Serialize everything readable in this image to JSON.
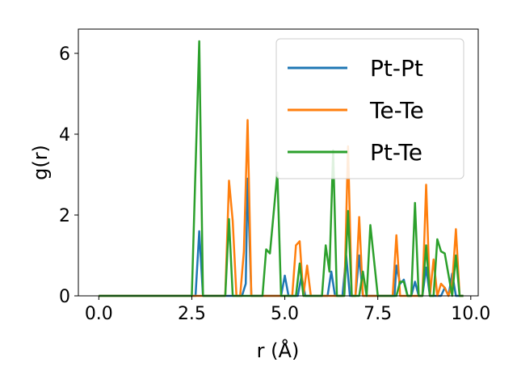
{
  "chart_data": {
    "type": "line",
    "xlabel": "r (Å)",
    "ylabel": "g(r)",
    "xlim": [
      -0.55,
      10.2
    ],
    "ylim": [
      0,
      6.6
    ],
    "xticks": [
      {
        "value": 0.0,
        "label": "0.0"
      },
      {
        "value": 2.5,
        "label": "2.5"
      },
      {
        "value": 5.0,
        "label": "5.0"
      },
      {
        "value": 7.5,
        "label": "7.5"
      },
      {
        "value": 10.0,
        "label": "10.0"
      }
    ],
    "yticks": [
      {
        "value": 0,
        "label": "0"
      },
      {
        "value": 2,
        "label": "2"
      },
      {
        "value": 4,
        "label": "4"
      },
      {
        "value": 6,
        "label": "6"
      }
    ],
    "grid": false,
    "legend": "top-right",
    "series": [
      {
        "name": "Pt-Pt",
        "color": "#1f77b4",
        "x": [
          0.0,
          2.6,
          2.7,
          2.8,
          3.85,
          3.95,
          4.0,
          4.1,
          4.9,
          5.0,
          5.1,
          5.35,
          5.45,
          5.55,
          6.15,
          6.25,
          6.35,
          6.55,
          6.65,
          6.75,
          6.9,
          7.0,
          7.1,
          7.95,
          8.0,
          8.1,
          8.2,
          8.3,
          8.4,
          8.5,
          8.6,
          8.7,
          8.8,
          8.9,
          9.0,
          9.2,
          9.3,
          9.4,
          9.5,
          9.6,
          9.7,
          9.8
        ],
        "y": [
          0.0,
          0.0,
          1.6,
          0.0,
          0.0,
          0.3,
          2.9,
          0.0,
          0.0,
          0.5,
          0.0,
          0.0,
          0.5,
          0.0,
          0.0,
          0.6,
          0.0,
          0.0,
          1.0,
          0.0,
          0.0,
          1.0,
          0.0,
          0.0,
          0.75,
          0.3,
          0.4,
          0.0,
          0.0,
          0.35,
          0.0,
          0.0,
          0.7,
          0.0,
          0.0,
          0.0,
          0.2,
          0.0,
          0.55,
          0.0,
          0.0,
          0.0
        ]
      },
      {
        "name": "Te-Te",
        "color": "#ff7f0e",
        "x": [
          0.0,
          3.4,
          3.5,
          3.6,
          3.7,
          3.8,
          3.9,
          4.0,
          4.1,
          5.1,
          5.2,
          5.3,
          5.4,
          5.5,
          5.6,
          5.7,
          6.5,
          6.6,
          6.7,
          6.8,
          6.9,
          7.0,
          7.1,
          7.9,
          8.0,
          8.1,
          8.6,
          8.7,
          8.8,
          8.9,
          9.0,
          9.1,
          9.2,
          9.3,
          9.4,
          9.5,
          9.6,
          9.7,
          9.8
        ],
        "y": [
          0.0,
          0.0,
          2.85,
          1.85,
          0.0,
          0.0,
          1.1,
          4.35,
          0.0,
          0.0,
          0.0,
          1.25,
          1.35,
          0.0,
          0.75,
          0.0,
          0.0,
          0.0,
          3.7,
          0.0,
          0.0,
          1.95,
          0.0,
          0.0,
          1.5,
          0.0,
          0.0,
          0.0,
          2.75,
          0.0,
          0.9,
          0.0,
          0.3,
          0.2,
          0.0,
          0.3,
          1.65,
          0.0,
          0.0
        ]
      },
      {
        "name": "Pt-Te",
        "color": "#2ca02c",
        "x": [
          0.0,
          2.5,
          2.7,
          2.8,
          3.4,
          3.5,
          3.6,
          4.4,
          4.5,
          4.6,
          4.8,
          4.9,
          5.0,
          5.2,
          5.3,
          5.4,
          5.5,
          5.9,
          6.0,
          6.1,
          6.2,
          6.3,
          6.4,
          6.6,
          6.7,
          6.8,
          7.0,
          7.1,
          7.2,
          7.3,
          7.5,
          7.6,
          8.0,
          8.1,
          8.2,
          8.3,
          8.4,
          8.5,
          8.6,
          8.7,
          8.8,
          8.9,
          9.0,
          9.1,
          9.2,
          9.3,
          9.5,
          9.6,
          9.7,
          9.8
        ],
        "y": [
          0.0,
          0.0,
          6.3,
          0.0,
          0.0,
          1.9,
          0.0,
          0.0,
          1.15,
          1.05,
          3.05,
          0.0,
          0.0,
          0.0,
          0.0,
          0.8,
          0.0,
          0.0,
          0.0,
          1.25,
          0.6,
          3.6,
          0.0,
          0.0,
          2.1,
          0.0,
          0.0,
          0.6,
          0.0,
          1.75,
          0.0,
          0.0,
          0.0,
          0.35,
          0.35,
          0.0,
          0.0,
          2.3,
          0.0,
          0.0,
          1.25,
          0.0,
          0.0,
          1.4,
          1.1,
          1.05,
          0.0,
          1.0,
          0.0,
          0.0
        ]
      }
    ]
  }
}
